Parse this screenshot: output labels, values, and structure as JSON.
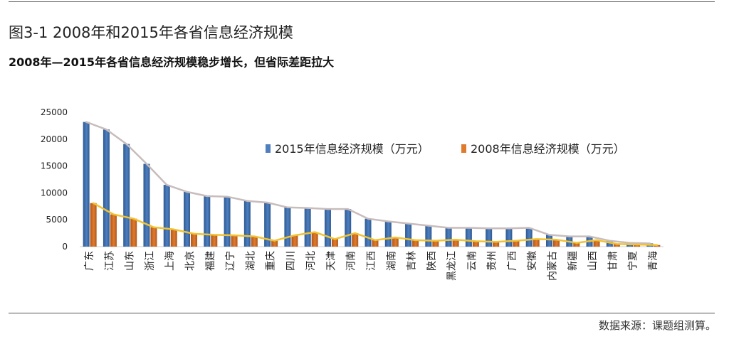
{
  "figure": {
    "title": "图3-1  2008年和2015年各省信息经济规模",
    "subtitle": "2008年—2015年各省信息经济规模稳步增长，但省际差距拉大",
    "source": "数据来源：课题组测算。"
  },
  "colors": {
    "bar_2015": "#4f7fbf",
    "bar_2015_dark": "#2c5a93",
    "bar_2008": "#e07b2e",
    "bar_2008_dark": "#b0561a",
    "line_2015": "#c8bcbc",
    "line_2008": "#f1c232"
  },
  "chart_data": {
    "type": "bar",
    "categories": [
      "广东",
      "江苏",
      "山东",
      "浙江",
      "上海",
      "北京",
      "福建",
      "辽宁",
      "湖北",
      "重庆",
      "四川",
      "河北",
      "天津",
      "河南",
      "江西",
      "湖南",
      "吉林",
      "陕西",
      "黑龙江",
      "云南",
      "贵州",
      "广西",
      "安徽",
      "内蒙古",
      "新疆",
      "山西",
      "甘肃",
      "宁夏",
      "青海"
    ],
    "series": [
      {
        "name": "2015年信息经济规模（万元）",
        "values": [
          23200,
          21800,
          19100,
          15400,
          11500,
          10200,
          9400,
          9300,
          8500,
          8200,
          7300,
          7200,
          7000,
          7000,
          5200,
          4700,
          4300,
          3900,
          3500,
          3500,
          3400,
          3400,
          3500,
          2200,
          1900,
          1900,
          1100,
          700,
          600
        ]
      },
      {
        "name": "2008年信息经济规模（万元）",
        "values": [
          8100,
          6000,
          5200,
          3600,
          3200,
          2400,
          2200,
          2100,
          1900,
          1100,
          2100,
          2700,
          1400,
          2500,
          1200,
          1700,
          1200,
          1100,
          1300,
          1000,
          900,
          1100,
          1400,
          1300,
          700,
          1200,
          500,
          400,
          300
        ]
      }
    ],
    "ylim": [
      0,
      25000
    ],
    "yticks": [
      "0",
      "5000",
      "10000",
      "15000",
      "20000",
      "25000"
    ],
    "legend_position": "upper-right",
    "grid": false
  }
}
